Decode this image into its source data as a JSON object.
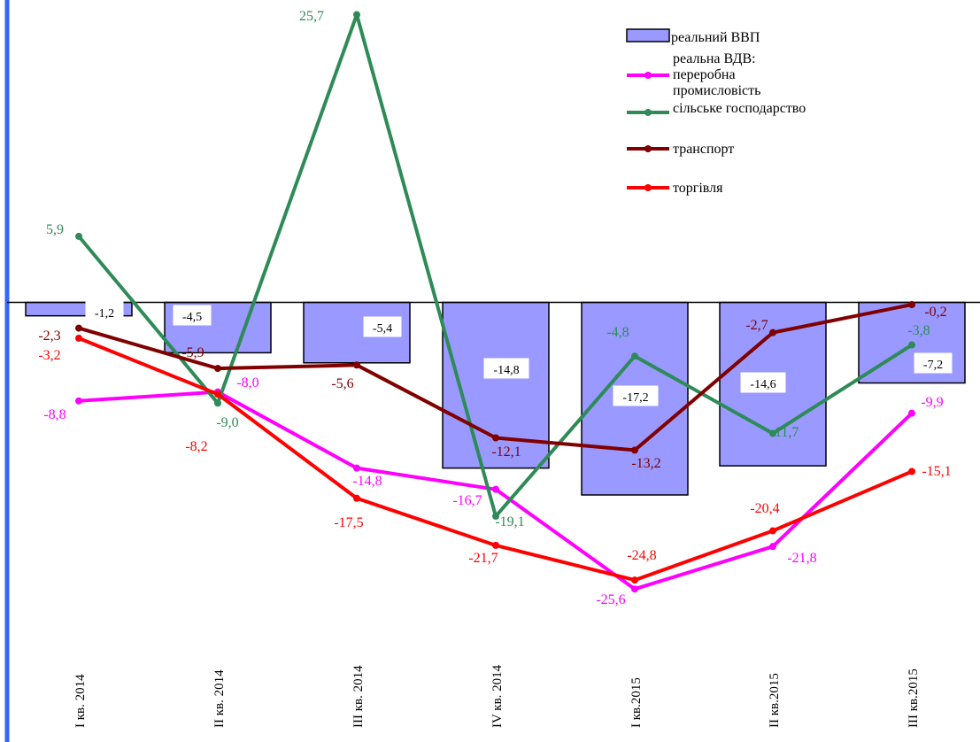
{
  "chart_data": {
    "type": "bar",
    "categories": [
      "I кв. 2014",
      "II кв. 2014",
      "III кв. 2014",
      "IV кв. 2014",
      "I кв.2015",
      "II кв.2015",
      "III кв.2015"
    ],
    "ylim": [
      -32,
      27
    ],
    "grid": false,
    "legend_position": "top-right",
    "bar_series": {
      "name": "реальний ВВП",
      "values": [
        -1.2,
        -4.5,
        -5.4,
        -14.8,
        -17.2,
        -14.6,
        -7.2
      ],
      "labels": [
        "-1,2",
        "-4,5",
        "-5,4",
        "-14,8",
        "-17,2",
        "-14,6",
        "-7,2"
      ],
      "color": "#9999FF"
    },
    "line_series": [
      {
        "name": "реальна ВДВ: переробна промисловість",
        "legend_lines": [
          "реальна ВДВ:",
          "переробна",
          "промисловість"
        ],
        "values": [
          -8.8,
          -8.0,
          -14.8,
          -16.7,
          -25.6,
          -21.8,
          -9.9
        ],
        "labels": [
          "-8,8",
          "-8,0",
          "-14,8",
          "-16,7",
          "-25,6",
          "-21,8",
          "-9,9"
        ],
        "color": "#FF00FF"
      },
      {
        "name": "сільське господарство",
        "legend_lines": [
          "сільське господарство"
        ],
        "values": [
          5.9,
          -9.0,
          25.7,
          -19.1,
          -4.8,
          -11.7,
          -3.8
        ],
        "labels": [
          "5,9",
          "-9,0",
          "25,7",
          "-19,1",
          "-4,8",
          "-11,7",
          "-3,8"
        ],
        "color": "#2E8B57"
      },
      {
        "name": "транспорт",
        "legend_lines": [
          "транспорт"
        ],
        "values": [
          -2.3,
          -5.9,
          -5.6,
          -12.1,
          -13.2,
          -2.7,
          -0.2
        ],
        "labels": [
          "-2,3",
          "-5,9",
          "-5,6",
          "-12,1",
          "-13,2",
          "-2,7",
          "-0,2"
        ],
        "color": "#800000"
      },
      {
        "name": "торгівля",
        "legend_lines": [
          "торгівля"
        ],
        "values": [
          -3.2,
          -8.2,
          -17.5,
          -21.7,
          -24.8,
          -20.4,
          -15.1
        ],
        "labels": [
          "-3,2",
          "-8,2",
          "-17,5",
          "-21,7",
          "-24,8",
          "-20,4",
          "-15,1"
        ],
        "color": "#FF0000"
      }
    ]
  },
  "colors": {
    "left_axis": "#3366FF",
    "zero_axis": "#000000"
  }
}
